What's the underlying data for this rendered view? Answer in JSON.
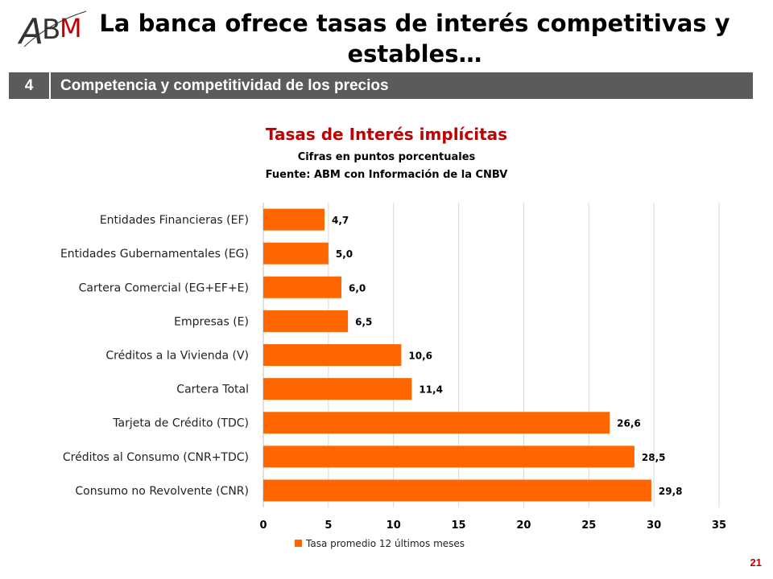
{
  "header": {
    "title": "La banca ofrece tasas de interés competitivas y estables…"
  },
  "section": {
    "number": "4",
    "label": "Competencia y competitividad de los precios"
  },
  "page_number": "21",
  "colors": {
    "bar": "#ff6600",
    "title_red": "#c00000",
    "section_bg": "#5b5b5b"
  },
  "chart_data": {
    "type": "bar",
    "orientation": "horizontal",
    "title": "Tasas de Interés implícitas",
    "subtitles": [
      "Cifras en puntos porcentuales",
      "Fuente: ABM con Información de la CNBV"
    ],
    "categories": [
      "Entidades Financieras (EF)",
      "Entidades Gubernamentales (EG)",
      "Cartera Comercial (EG+EF+E)",
      "Empresas (E)",
      "Créditos a la Vivienda (V)",
      "Cartera Total",
      "Tarjeta de Crédito (TDC)",
      "Créditos al Consumo (CNR+TDC)",
      "Consumo no Revolvente (CNR)"
    ],
    "series": [
      {
        "name": "Tasa promedio 12 últimos meses",
        "values": [
          4.7,
          5.0,
          6.0,
          6.5,
          10.6,
          11.4,
          26.6,
          28.5,
          29.8
        ],
        "labels": [
          "4,7",
          "5,0",
          "6,0",
          "6,5",
          "10,6",
          "11,4",
          "26,6",
          "28,5",
          "29,8"
        ]
      }
    ],
    "xlim": [
      0,
      35
    ],
    "xticks": [
      "0",
      "5",
      "10",
      "15",
      "20",
      "25",
      "30",
      "35"
    ],
    "grid": true,
    "legend_position": "bottom"
  }
}
